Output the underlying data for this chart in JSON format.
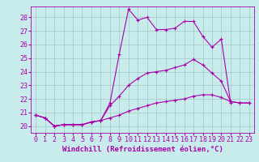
{
  "background_color": "#c8ecec",
  "line_color": "#aa00aa",
  "grid_color": "#aacccc",
  "xlabel": "Windchill (Refroidissement éolien,°C)",
  "xlabel_fontsize": 6.5,
  "tick_fontsize": 6.0,
  "ylim": [
    19.5,
    28.8
  ],
  "xlim": [
    -0.5,
    23.5
  ],
  "yticks": [
    20,
    21,
    22,
    23,
    24,
    25,
    26,
    27,
    28
  ],
  "xticks": [
    0,
    1,
    2,
    3,
    4,
    5,
    6,
    7,
    8,
    9,
    10,
    11,
    12,
    13,
    14,
    15,
    16,
    17,
    18,
    19,
    20,
    21,
    22,
    23
  ],
  "series": [
    {
      "x": [
        0,
        1,
        2,
        3,
        4,
        5,
        6,
        7,
        8,
        9,
        10,
        11,
        12,
        13,
        14,
        15,
        16,
        17,
        18,
        19,
        20,
        21
      ],
      "y": [
        20.8,
        20.6,
        20.0,
        20.1,
        20.1,
        20.1,
        20.3,
        20.4,
        21.7,
        25.3,
        28.6,
        27.8,
        28.0,
        27.1,
        27.1,
        27.2,
        27.7,
        27.7,
        26.6,
        25.8,
        26.4,
        21.7
      ]
    },
    {
      "x": [
        0,
        1,
        2,
        3,
        4,
        5,
        6,
        7,
        8,
        9,
        10,
        11,
        12,
        13,
        14,
        15,
        16,
        17,
        18,
        19,
        20,
        21,
        22,
        23
      ],
      "y": [
        20.8,
        20.6,
        20.0,
        20.1,
        20.1,
        20.1,
        20.3,
        20.4,
        21.5,
        22.2,
        23.0,
        23.5,
        23.9,
        24.0,
        24.1,
        24.3,
        24.5,
        24.9,
        24.5,
        23.9,
        23.3,
        21.8,
        21.7,
        21.7
      ]
    },
    {
      "x": [
        0,
        1,
        2,
        3,
        4,
        5,
        6,
        7,
        8,
        9,
        10,
        11,
        12,
        13,
        14,
        15,
        16,
        17,
        18,
        19,
        20,
        21,
        22,
        23
      ],
      "y": [
        20.8,
        20.6,
        20.0,
        20.1,
        20.1,
        20.1,
        20.3,
        20.4,
        20.6,
        20.8,
        21.1,
        21.3,
        21.5,
        21.7,
        21.8,
        21.9,
        22.0,
        22.2,
        22.3,
        22.3,
        22.1,
        21.8,
        21.7,
        21.7
      ]
    }
  ]
}
